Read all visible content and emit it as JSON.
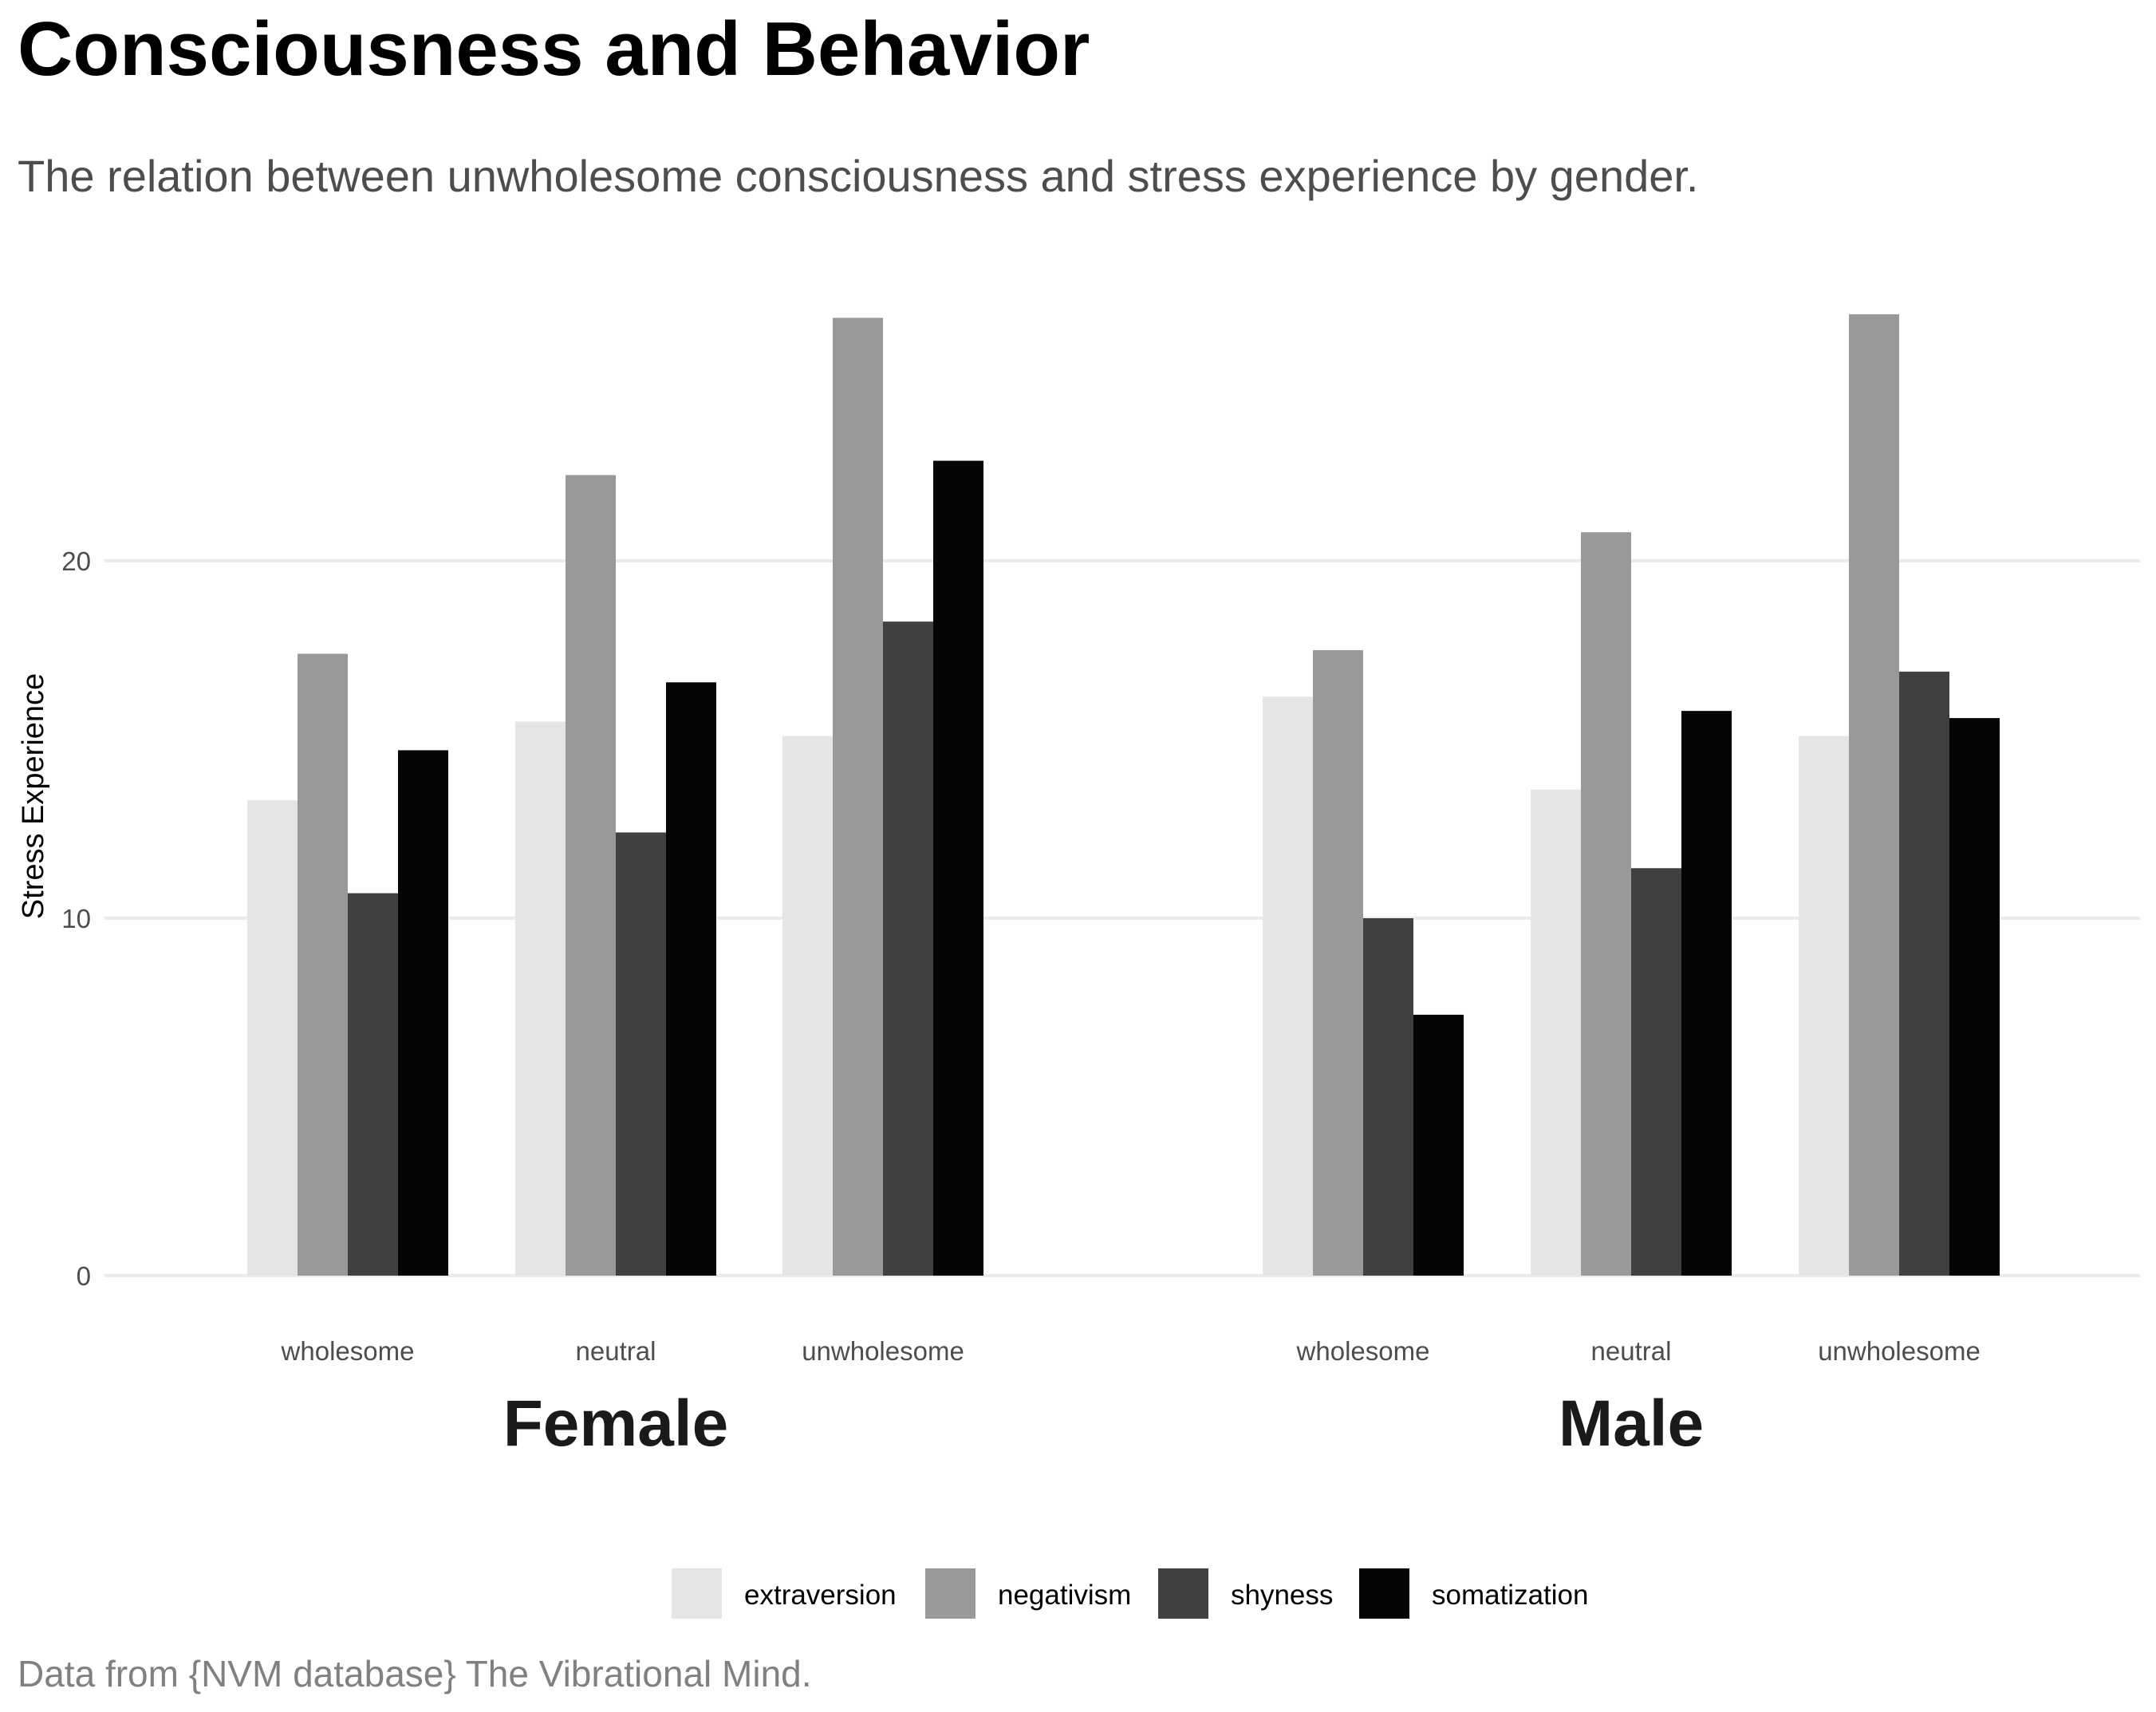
{
  "chart_data": {
    "type": "bar",
    "title": "Consciousness and Behavior",
    "subtitle": "The relation between unwholesome consciousness and stress experience by gender.",
    "caption": "Data from {NVM database} The Vibrational Mind.",
    "ylabel": "Stress Experience",
    "xlabel": "",
    "ylim": [
      0,
      28
    ],
    "yticks": [
      "0",
      "10",
      "20"
    ],
    "ytick_values": [
      0,
      10,
      20
    ],
    "grid": true,
    "legend_position": "bottom",
    "categories": [
      "wholesome",
      "neutral",
      "unwholesome"
    ],
    "facets": [
      {
        "name": "Female",
        "series": [
          {
            "name": "extraversion",
            "values": [
              13.3,
              15.5,
              15.1
            ]
          },
          {
            "name": "negativism",
            "values": [
              17.4,
              22.4,
              26.8
            ]
          },
          {
            "name": "shyness",
            "values": [
              10.7,
              12.4,
              18.3
            ]
          },
          {
            "name": "somatization",
            "values": [
              14.7,
              16.6,
              22.8
            ]
          }
        ]
      },
      {
        "name": "Male",
        "series": [
          {
            "name": "extraversion",
            "values": [
              16.2,
              13.6,
              15.1
            ]
          },
          {
            "name": "negativism",
            "values": [
              17.5,
              20.8,
              26.9
            ]
          },
          {
            "name": "shyness",
            "values": [
              10.0,
              11.4,
              16.9
            ]
          },
          {
            "name": "somatization",
            "values": [
              7.3,
              15.8,
              15.6
            ]
          }
        ]
      }
    ],
    "legend": [
      "extraversion",
      "negativism",
      "shyness",
      "somatization"
    ],
    "colors": {
      "extraversion": "#e5e5e5",
      "negativism": "#999999",
      "shyness": "#404040",
      "somatization": "#050505"
    }
  }
}
